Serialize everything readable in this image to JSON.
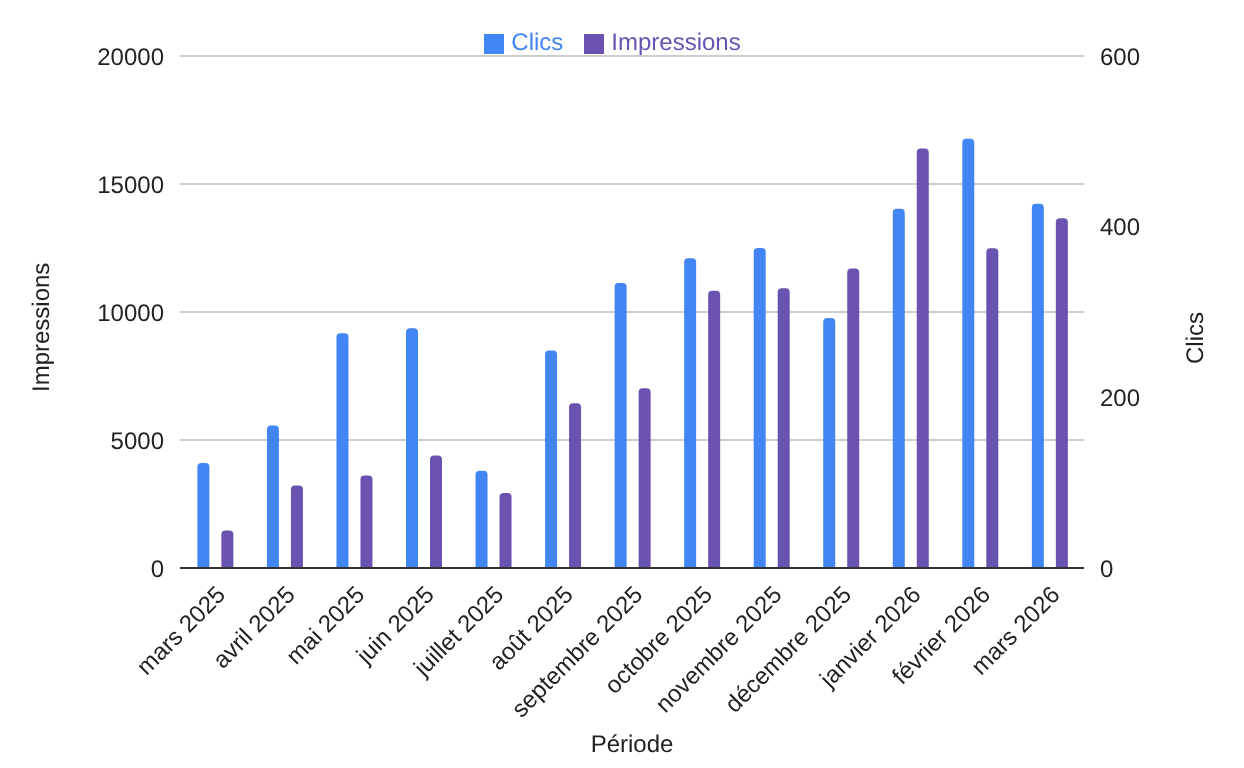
{
  "chart_data": {
    "type": "bar",
    "xlabel": "Période",
    "ylabel": "Impressions",
    "y2label": "Clics",
    "categories": [
      "mars 2025",
      "avril 2025",
      "mai 2025",
      "juin 2025",
      "juillet 2025",
      "août 2025",
      "septembre 2025",
      "octobre 2025",
      "novembre 2025",
      "décembre 2025",
      "janvier 2026",
      "février 2026",
      "mars 2026"
    ],
    "series": [
      {
        "name": "Clics",
        "color": "#4285f4",
        "axis": "y2",
        "values": [
          123,
          167,
          275,
          281,
          114,
          255,
          334,
          363,
          375,
          293,
          421,
          503,
          427
        ]
      },
      {
        "name": "Impressions",
        "color": "#6a52b0",
        "values": [
          1460,
          3220,
          3610,
          4390,
          2930,
          6440,
          7020,
          10830,
          10930,
          11700,
          16390,
          12490,
          13660
        ]
      }
    ],
    "ylim": [
      0,
      20000
    ],
    "yticks": [
      0,
      5000,
      10000,
      15000,
      20000
    ],
    "y2lim": [
      0,
      600
    ],
    "y2ticks": [
      0,
      200,
      400,
      600
    ],
    "grid": "y",
    "legend": "top"
  }
}
